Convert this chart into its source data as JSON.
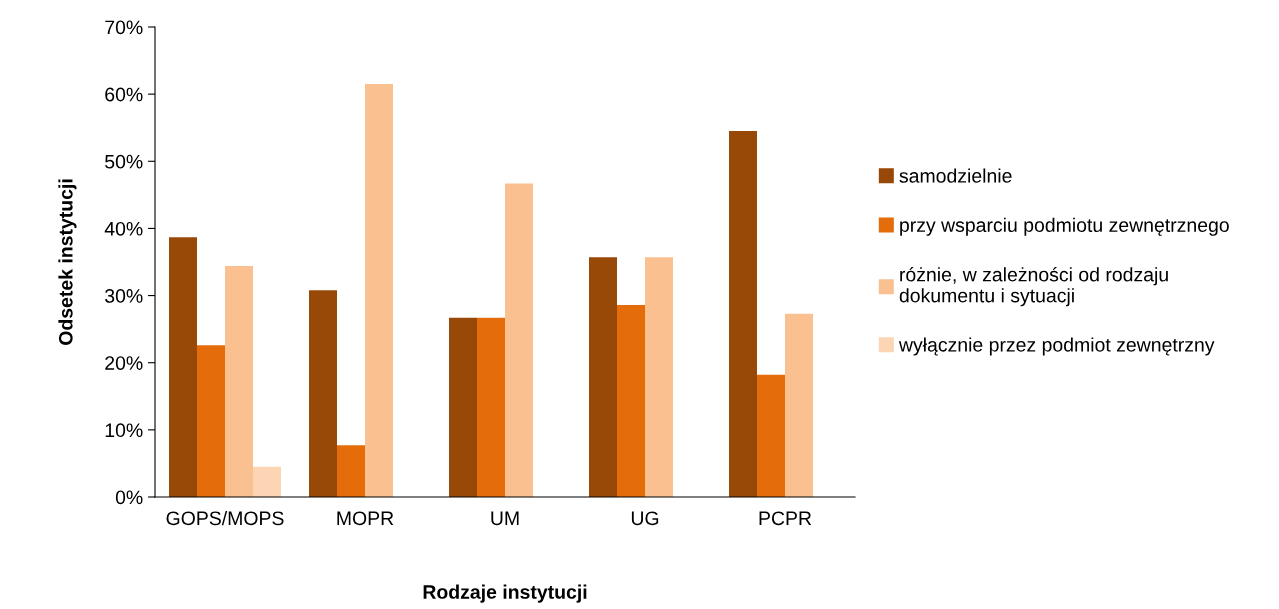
{
  "chart_data": {
    "type": "bar",
    "xlabel": "Rodzaje instytucji",
    "ylabel": "Odsetek instytucji",
    "categories": [
      "GOPS/MOPS",
      "MOPR",
      "UM",
      "UG",
      "PCPR"
    ],
    "series": [
      {
        "name": "samodzielnie",
        "color": "#984807",
        "values": [
          38.7,
          30.8,
          26.7,
          35.7,
          54.5
        ]
      },
      {
        "name": "przy wsparciu podmiotu zewnętrznego",
        "color": "#e46c0a",
        "values": [
          22.6,
          7.7,
          26.7,
          28.6,
          18.2
        ]
      },
      {
        "name": "różnie, w zależności od rodzaju\ndokumentu i sytuacji",
        "color": "#fac090",
        "values": [
          34.4,
          61.5,
          46.7,
          35.7,
          27.3
        ]
      },
      {
        "name": "wyłącznie przez podmiot zewnętrzny",
        "color": "#fcd5b5",
        "values": [
          4.5,
          null,
          null,
          null,
          null
        ]
      }
    ],
    "ylim": [
      0,
      70
    ],
    "yticks": [
      {
        "value": 0,
        "label": "0%"
      },
      {
        "value": 10,
        "label": "10%"
      },
      {
        "value": 20,
        "label": "20%"
      },
      {
        "value": 30,
        "label": "30%"
      },
      {
        "value": 40,
        "label": "40%"
      },
      {
        "value": 50,
        "label": "50%"
      },
      {
        "value": 60,
        "label": "60%"
      },
      {
        "value": 70,
        "label": "70%"
      }
    ],
    "grid": false,
    "legend": "right"
  }
}
